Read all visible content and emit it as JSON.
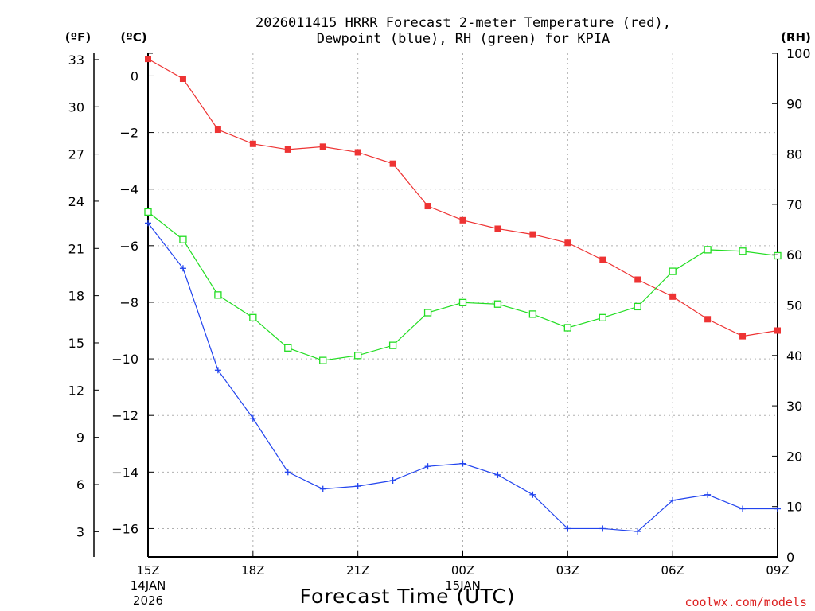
{
  "chart_data": {
    "type": "line",
    "title_line1": "2026011415 HRRR Forecast 2-meter Temperature (red),",
    "title_line2": "Dewpoint (blue), RH (green) for KPIA",
    "xlabel": "Forecast Time (UTC)",
    "credit": "coolwx.com/models",
    "left_outer_unit": "(ºF)",
    "left_inner_unit": "(ºC)",
    "right_unit": "(RH)",
    "x": [
      0,
      1,
      2,
      3,
      4,
      5,
      6,
      7,
      8,
      9,
      10,
      11,
      12,
      13,
      14,
      15,
      16,
      17,
      18
    ],
    "xlim": [
      0,
      18
    ],
    "x_ticks": [
      {
        "x": 0,
        "label": "15Z",
        "sub1": "14JAN",
        "sub2": "2026"
      },
      {
        "x": 3,
        "label": "18Z",
        "sub1": "",
        "sub2": ""
      },
      {
        "x": 6,
        "label": "21Z",
        "sub1": "",
        "sub2": ""
      },
      {
        "x": 9,
        "label": "00Z",
        "sub1": "15JAN",
        "sub2": ""
      },
      {
        "x": 12,
        "label": "03Z",
        "sub1": "",
        "sub2": ""
      },
      {
        "x": 15,
        "label": "06Z",
        "sub1": "",
        "sub2": ""
      },
      {
        "x": 18,
        "label": "09Z",
        "sub1": "",
        "sub2": ""
      }
    ],
    "celsius_axis": {
      "min": -17,
      "max": 0.8,
      "ticks": [
        "0",
        "−2",
        "−4",
        "−6",
        "−8",
        "−10",
        "−12",
        "−14",
        "−16"
      ],
      "tick_values": [
        0,
        -2,
        -4,
        -6,
        -8,
        -10,
        -12,
        -14,
        -16
      ]
    },
    "fahrenheit_axis": {
      "min": 1.4,
      "max": 33.4,
      "ticks": [
        "33",
        "30",
        "27",
        "24",
        "21",
        "18",
        "15",
        "12",
        "9",
        "6",
        "3"
      ],
      "tick_values": [
        33,
        30,
        27,
        24,
        21,
        18,
        15,
        12,
        9,
        6,
        3
      ]
    },
    "rh_axis": {
      "min": 0,
      "max": 100,
      "ticks": [
        "100",
        "90",
        "80",
        "70",
        "60",
        "50",
        "40",
        "30",
        "20",
        "10",
        "0"
      ],
      "tick_values": [
        100,
        90,
        80,
        70,
        60,
        50,
        40,
        30,
        20,
        10,
        0
      ]
    },
    "series": [
      {
        "name": "Temperature",
        "units": "C",
        "color": "#ee3333",
        "marker": "filled-square",
        "values": [
          0.6,
          -0.1,
          -1.9,
          -2.4,
          -2.6,
          -2.5,
          -2.7,
          -3.1,
          -4.6,
          -5.1,
          -5.4,
          -5.6,
          -5.9,
          -6.5,
          -7.2,
          -7.8,
          -8.6,
          -9.2,
          -9.0
        ]
      },
      {
        "name": "Dewpoint",
        "units": "C",
        "color": "#2244ee",
        "marker": "plus",
        "values": [
          -5.2,
          -6.8,
          -10.4,
          -12.1,
          -14.0,
          -14.6,
          -14.5,
          -14.3,
          -13.8,
          -13.7,
          -14.1,
          -14.8,
          -16.0,
          -16.0,
          -16.1,
          -15.0,
          -14.8,
          -15.3,
          -15.3
        ]
      },
      {
        "name": "RH",
        "units": "%",
        "color": "#22dd22",
        "marker": "open-square",
        "values": [
          68.5,
          63.0,
          52.0,
          47.5,
          41.5,
          39.0,
          40.0,
          42.0,
          48.5,
          50.5,
          50.2,
          48.2,
          45.5,
          47.5,
          49.7,
          56.7,
          61.0,
          60.7,
          59.8
        ]
      }
    ]
  }
}
